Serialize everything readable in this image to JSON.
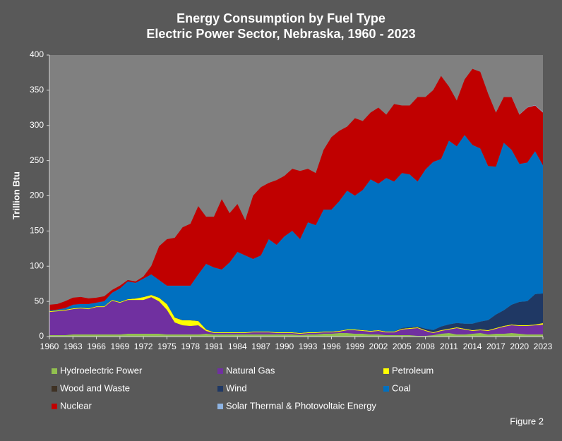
{
  "chart_data": {
    "type": "stacked_area",
    "title": "Energy Consumption by Fuel Type",
    "subtitle": "Electric Power Sector, Nebraska, 1960 - 2023",
    "y_label": "Trillion Btu",
    "footnote": "Figure 2",
    "x": [
      1960,
      1961,
      1962,
      1963,
      1964,
      1965,
      1966,
      1967,
      1968,
      1969,
      1970,
      1971,
      1972,
      1973,
      1974,
      1975,
      1976,
      1977,
      1978,
      1979,
      1980,
      1981,
      1982,
      1983,
      1984,
      1985,
      1986,
      1987,
      1988,
      1989,
      1990,
      1991,
      1992,
      1993,
      1994,
      1995,
      1996,
      1997,
      1998,
      1999,
      2000,
      2001,
      2002,
      2003,
      2004,
      2005,
      2006,
      2007,
      2008,
      2009,
      2010,
      2011,
      2012,
      2013,
      2014,
      2015,
      2016,
      2017,
      2018,
      2019,
      2020,
      2021,
      2022,
      2023
    ],
    "xlim": [
      1960,
      2023
    ],
    "xticks": [
      1960,
      1963,
      1966,
      1969,
      1972,
      1975,
      1978,
      1981,
      1984,
      1987,
      1990,
      1993,
      1996,
      1999,
      2002,
      2005,
      2008,
      2011,
      2014,
      2017,
      2020,
      2023
    ],
    "ylim": [
      0,
      400
    ],
    "yticks": [
      0,
      50,
      100,
      150,
      200,
      250,
      300,
      350,
      400
    ],
    "grid": false,
    "legend": "bottom",
    "series": [
      {
        "name": "Hydroelectric Power",
        "color": "#92c04f",
        "values": [
          2,
          2,
          2,
          3,
          3,
          3,
          3,
          3,
          3,
          3,
          4,
          4,
          4,
          4,
          4,
          3,
          3,
          3,
          3,
          3,
          4,
          3,
          3,
          3,
          3,
          3,
          3,
          3,
          3,
          3,
          3,
          3,
          2,
          3,
          3,
          4,
          4,
          5,
          5,
          4,
          4,
          3,
          3,
          2,
          2,
          2,
          2,
          1,
          1,
          2,
          4,
          5,
          3,
          3,
          4,
          5,
          3,
          4,
          4,
          5,
          4,
          3,
          3,
          3
        ]
      },
      {
        "name": "Natural Gas",
        "color": "#7030a0",
        "values": [
          33,
          34,
          35,
          36,
          37,
          36,
          39,
          39,
          48,
          45,
          48,
          48,
          48,
          52,
          46,
          35,
          17,
          13,
          12,
          13,
          4,
          2,
          2,
          2,
          2,
          2,
          3,
          3,
          3,
          2,
          2,
          2,
          2,
          2,
          2,
          2,
          2,
          2,
          4,
          5,
          4,
          4,
          5,
          4,
          4,
          8,
          9,
          11,
          7,
          3,
          4,
          5,
          9,
          7,
          4,
          4,
          5,
          7,
          10,
          11,
          11,
          12,
          13,
          14
        ]
      },
      {
        "name": "Petroleum",
        "color": "#ffff00",
        "values": [
          1,
          1,
          1,
          1,
          1,
          1,
          1,
          1,
          1,
          1,
          1,
          2,
          4,
          3,
          5,
          8,
          7,
          7,
          8,
          6,
          2,
          1,
          1,
          1,
          1,
          1,
          1,
          1,
          1,
          1,
          1,
          1,
          1,
          1,
          1,
          1,
          1,
          1,
          1,
          1,
          1,
          1,
          1,
          1,
          1,
          1,
          1,
          1,
          1,
          1,
          1,
          1,
          1,
          1,
          1,
          1,
          1,
          1,
          1,
          1,
          1,
          1,
          1,
          2
        ]
      },
      {
        "name": "Wood and Waste",
        "color": "#3f3224",
        "values": [
          0.3,
          0.3,
          0.3,
          0.3,
          0.3,
          0.3,
          0.3,
          0.3,
          0.3,
          0.3,
          0.3,
          0.3,
          0.3,
          0.3,
          0.3,
          0.3,
          0.3,
          0.3,
          0.3,
          0.3,
          0.3,
          0.3,
          0.3,
          0.3,
          0.3,
          0.3,
          0.3,
          0.3,
          0.3,
          0.3,
          0.3,
          0.3,
          0.3,
          0.3,
          0.3,
          0.3,
          0.3,
          0.3,
          0.3,
          0.3,
          0.3,
          0.3,
          0.3,
          0.3,
          0.3,
          0.3,
          0.3,
          0.3,
          0.3,
          0.3,
          0.3,
          0.3,
          0.3,
          0.3,
          0.3,
          0.3,
          0.3,
          0.3,
          0.3,
          0.3,
          0.3,
          0.3,
          0.3,
          0.3
        ]
      },
      {
        "name": "Wind",
        "color": "#1f3864",
        "values": [
          0,
          0,
          0,
          0,
          0,
          0,
          0,
          0,
          0,
          0,
          0,
          0,
          0,
          0,
          0,
          0,
          0,
          0,
          0,
          0,
          0,
          0,
          0,
          0,
          0,
          0,
          0,
          0,
          0,
          0,
          0,
          0,
          0,
          0,
          0,
          0,
          0,
          0,
          0,
          0,
          0,
          0,
          0,
          0,
          0,
          1,
          1,
          1,
          2,
          3,
          5,
          6,
          6,
          7,
          9,
          11,
          14,
          19,
          22,
          28,
          33,
          34,
          43,
          42
        ]
      },
      {
        "name": "Coal",
        "color": "#0070c0",
        "values": [
          1,
          1,
          2,
          5,
          5,
          6,
          5,
          7,
          10,
          19,
          25,
          22,
          26,
          29,
          25,
          26,
          45,
          49,
          49,
          66,
          93,
          92,
          89,
          99,
          114,
          109,
          103,
          108,
          131,
          124,
          136,
          144,
          133,
          156,
          152,
          173,
          173,
          184,
          197,
          190,
          199,
          215,
          208,
          218,
          213,
          220,
          217,
          206,
          226,
          239,
          238,
          261,
          251,
          268,
          254,
          246,
          219,
          210,
          238,
          220,
          196,
          197,
          203,
          182
        ]
      },
      {
        "name": "Nuclear",
        "color": "#c00000",
        "values": [
          8,
          8,
          10,
          10,
          10,
          8,
          7,
          7,
          4,
          4,
          2,
          2,
          3,
          12,
          48,
          66,
          68,
          83,
          88,
          97,
          67,
          72,
          100,
          70,
          68,
          50,
          90,
          97,
          80,
          92,
          86,
          88,
          97,
          76,
          74,
          85,
          103,
          100,
          91,
          110,
          98,
          95,
          108,
          90,
          110,
          96,
          98,
          120,
          103,
          102,
          118,
          77,
          65,
          79,
          108,
          109,
          103,
          77,
          65,
          75,
          70,
          78,
          65,
          75
        ]
      },
      {
        "name": "Solar Thermal & Photovoltaic Energy",
        "color": "#8eb4e3",
        "values": [
          0,
          0,
          0,
          0,
          0,
          0,
          0,
          0,
          0,
          0,
          0,
          0,
          0,
          0,
          0,
          0,
          0,
          0,
          0,
          0,
          0,
          0,
          0,
          0,
          0,
          0,
          0,
          0,
          0,
          0,
          0,
          0,
          0,
          0,
          0,
          0,
          0,
          0,
          0,
          0,
          0,
          0,
          0,
          0,
          0,
          0,
          0,
          0,
          0,
          0,
          0,
          0,
          0,
          0,
          0,
          0.1,
          0.1,
          0.2,
          0.2,
          0.3,
          0.4,
          0.5,
          0.6,
          0.8
        ]
      }
    ]
  }
}
